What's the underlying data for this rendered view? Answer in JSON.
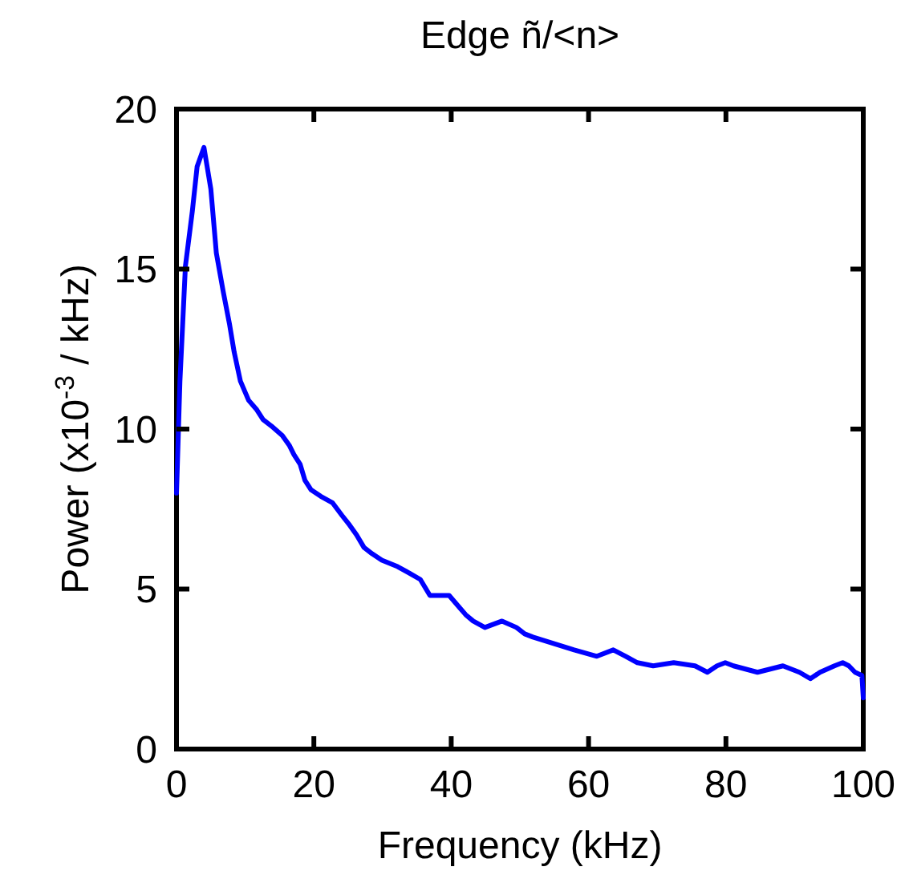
{
  "chart_data": {
    "type": "line",
    "title": "Edge ñ/<n>",
    "xlabel": "Frequency (kHz)",
    "ylabel": "Power (x10$^{-3}$ / kHz)",
    "xlim": [
      0,
      100
    ],
    "xticks": [
      0,
      20,
      40,
      60,
      80,
      100
    ],
    "ylim": [
      0,
      20
    ],
    "yticks": [
      0,
      5,
      10,
      15,
      20
    ],
    "series": [
      {
        "color": "#0000ff",
        "x": [
          0,
          0.5,
          1.3,
          2.3,
          3.0,
          4.0,
          5.0,
          5.8,
          6.8,
          7.7,
          8.4,
          9.3,
          10.5,
          11.7,
          12.6,
          13.8,
          15.4,
          16.4,
          17.1,
          18.0,
          18.7,
          19.6,
          21,
          22.7,
          24.1,
          25.2,
          26.2,
          27.3,
          28.5,
          29.9,
          32.2,
          33.9,
          35.5,
          36.9,
          39.7,
          40.9,
          42.1,
          43.2,
          44.9,
          47.4,
          49.5,
          50.7,
          51.9,
          54.9,
          57.9,
          61.2,
          63.6,
          65.4,
          67.1,
          69.4,
          72.4,
          75.5,
          77.3,
          78.7,
          79.9,
          81.1,
          84.6,
          88.3,
          90.7,
          92.3,
          93.7,
          95.8,
          97,
          97.9,
          98.8,
          99.8,
          100
        ],
        "values": [
          8.0,
          11.5,
          15.1,
          16.8,
          18.2,
          18.8,
          17.5,
          15.5,
          14.3,
          13.3,
          12.4,
          11.5,
          10.9,
          10.6,
          10.3,
          10.1,
          9.8,
          9.5,
          9.2,
          8.9,
          8.4,
          8.1,
          7.9,
          7.7,
          7.3,
          7.0,
          6.7,
          6.3,
          6.1,
          5.9,
          5.7,
          5.5,
          5.3,
          4.8,
          4.8,
          4.5,
          4.2,
          4.0,
          3.8,
          4.0,
          3.8,
          3.6,
          3.5,
          3.3,
          3.1,
          2.9,
          3.1,
          2.9,
          2.7,
          2.6,
          2.7,
          2.6,
          2.4,
          2.6,
          2.7,
          2.6,
          2.4,
          2.6,
          2.4,
          2.2,
          2.4,
          2.6,
          2.7,
          2.6,
          2.4,
          2.3,
          1.6
        ]
      }
    ]
  }
}
